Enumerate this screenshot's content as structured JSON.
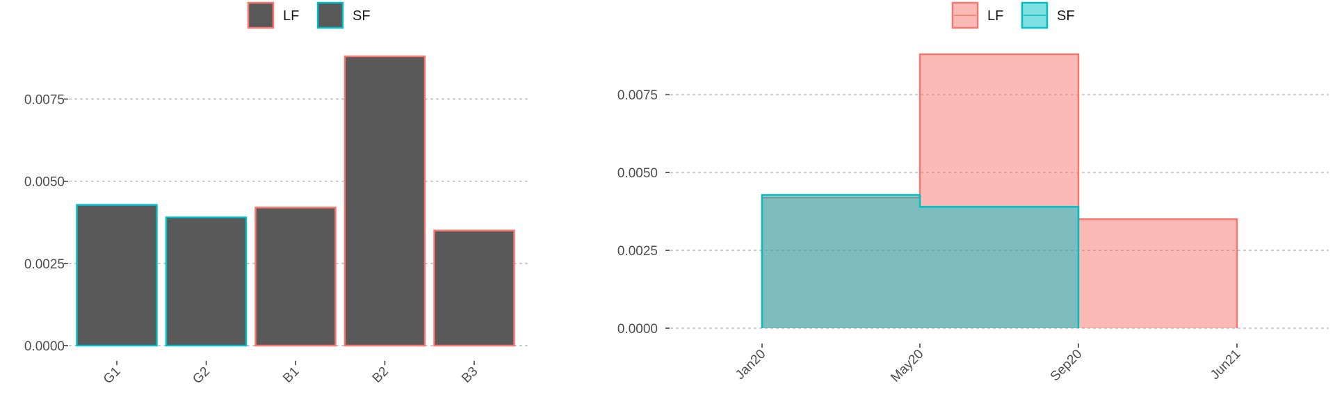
{
  "colors": {
    "LF": "#f8766d",
    "SF": "#00bfc4",
    "bar_fill": "#595959",
    "grid": "#bdbdbd",
    "axis_text": "#4d4d4d"
  },
  "chart_data": [
    {
      "type": "bar",
      "title": "",
      "xlabel": "",
      "ylabel": "",
      "legend": {
        "position": "top",
        "entries": [
          "LF",
          "SF"
        ]
      },
      "categories": [
        "G1",
        "G2",
        "B1",
        "B2",
        "B3"
      ],
      "values": [
        0.00428,
        0.0039,
        0.0042,
        0.0088,
        0.0035
      ],
      "outline_group": [
        "SF",
        "SF",
        "LF",
        "LF",
        "LF"
      ],
      "ylim": [
        0,
        0.0088
      ],
      "yticks": [
        0,
        0.0025,
        0.005,
        0.0075
      ],
      "ytick_labels": [
        "0.0000",
        "0.0025",
        "0.0050",
        "0.0075"
      ],
      "grid": "horizontal dotted"
    },
    {
      "type": "area",
      "title": "",
      "xlabel": "",
      "ylabel": "",
      "legend": {
        "position": "top",
        "entries": [
          "LF",
          "SF"
        ]
      },
      "x_ticks": [
        "Jan20",
        "May20",
        "Sep20",
        "Jun21"
      ],
      "series": [
        {
          "name": "LF",
          "segments": [
            {
              "from": "Jan20",
              "to": "May20",
              "value": 0.0042
            },
            {
              "from": "May20",
              "to": "Sep20",
              "value": 0.0088
            },
            {
              "from": "Sep20",
              "to": "Jun21",
              "value": 0.0035
            }
          ]
        },
        {
          "name": "SF",
          "segments": [
            {
              "from": "Jan20",
              "to": "May20",
              "value": 0.00428
            },
            {
              "from": "May20",
              "to": "Sep20",
              "value": 0.0039
            }
          ]
        }
      ],
      "ylim": [
        0,
        0.0088
      ],
      "yticks": [
        0,
        0.0025,
        0.005,
        0.0075
      ],
      "ytick_labels": [
        "0.0000",
        "0.0025",
        "0.0050",
        "0.0075"
      ],
      "grid": "horizontal dotted"
    }
  ]
}
